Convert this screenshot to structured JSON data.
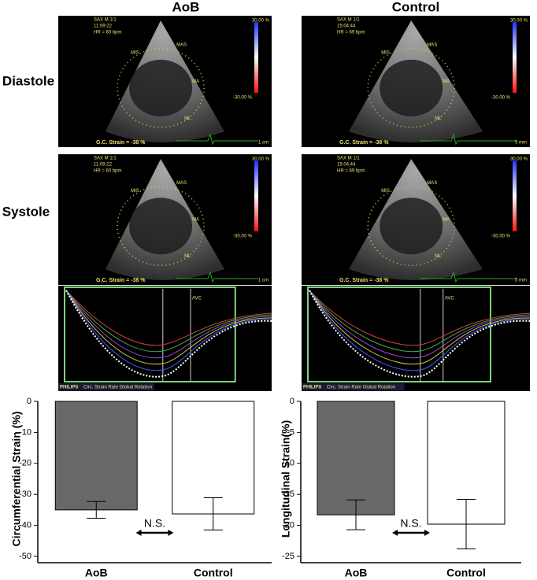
{
  "column_headers": [
    "AoB",
    "Control"
  ],
  "row_labels": [
    "Diastole",
    "Systole"
  ],
  "echo_panels": [
    {
      "mode": "SAX M 1/1",
      "time": "11:09:22",
      "heart_rate": "HR = 60 bpm",
      "scale_max": "30.00 %",
      "scale_min": "-30.00 %",
      "strain": "G.C. Strain = -38 %",
      "scale_bar": "1 cm",
      "segments": [
        "MIS",
        "MAS",
        "MA",
        "ML"
      ]
    },
    {
      "mode": "SAX M 1/1",
      "time": "15:04:44",
      "heart_rate": "HR = 69 bpm",
      "scale_max": "30.00 %",
      "scale_min": "-30.00 %",
      "strain": "G.C. Strain = -38 %",
      "scale_bar": "5 mm",
      "segments": [
        "MIS",
        "MAS",
        "MA",
        "ML"
      ]
    },
    {
      "mode": "SAX M 1/1",
      "time": "11:09:22",
      "heart_rate": "HR = 60 bpm",
      "scale_max": "30.00 %",
      "scale_min": "-30.00 %",
      "strain": "G.C. Strain = -38 %",
      "scale_bar": "1 cm",
      "segments": [
        "MIS",
        "MAS",
        "MA",
        "ML"
      ]
    },
    {
      "mode": "SAX M 1/1",
      "time": "15:04:44",
      "heart_rate": "HR = 69 bpm",
      "scale_max": "30.00 %",
      "scale_min": "-30.00 %",
      "strain": "G.C. Strain = -38 %",
      "scale_bar": "5 mm",
      "segments": [
        "MIS",
        "MAS",
        "MA",
        "ML"
      ]
    }
  ],
  "strain_curves": [
    {
      "event": "AVC",
      "vendor": "PHILIPS",
      "tabs": "Circ. Strain Rate Global Rotation"
    },
    {
      "event": "AVC",
      "vendor": "PHILIPS",
      "tabs": "Circ. Strain Rate Global Rotation"
    }
  ],
  "chart_data": [
    {
      "type": "bar",
      "ylabel": "Circumferential Strain (%)",
      "categories": [
        "AoB",
        "Control"
      ],
      "values": [
        -35,
        -36.3
      ],
      "errors": [
        2.7,
        5.2
      ],
      "colors": [
        "#686868",
        "#ffffff"
      ],
      "ylim": [
        -50,
        0
      ],
      "yticks": [
        0,
        -10,
        -20,
        -30,
        -40,
        -50
      ],
      "annotation": "N.S."
    },
    {
      "type": "bar",
      "ylabel": "Longitudinal Strain(%)",
      "categories": [
        "AoB",
        "Control"
      ],
      "values": [
        -18.3,
        -19.8
      ],
      "errors": [
        2.4,
        4
      ],
      "colors": [
        "#686868",
        "#ffffff"
      ],
      "ylim": [
        -25,
        0
      ],
      "yticks": [
        0,
        -5,
        -10,
        -15,
        -20,
        -25
      ],
      "annotation": "N.S."
    }
  ]
}
